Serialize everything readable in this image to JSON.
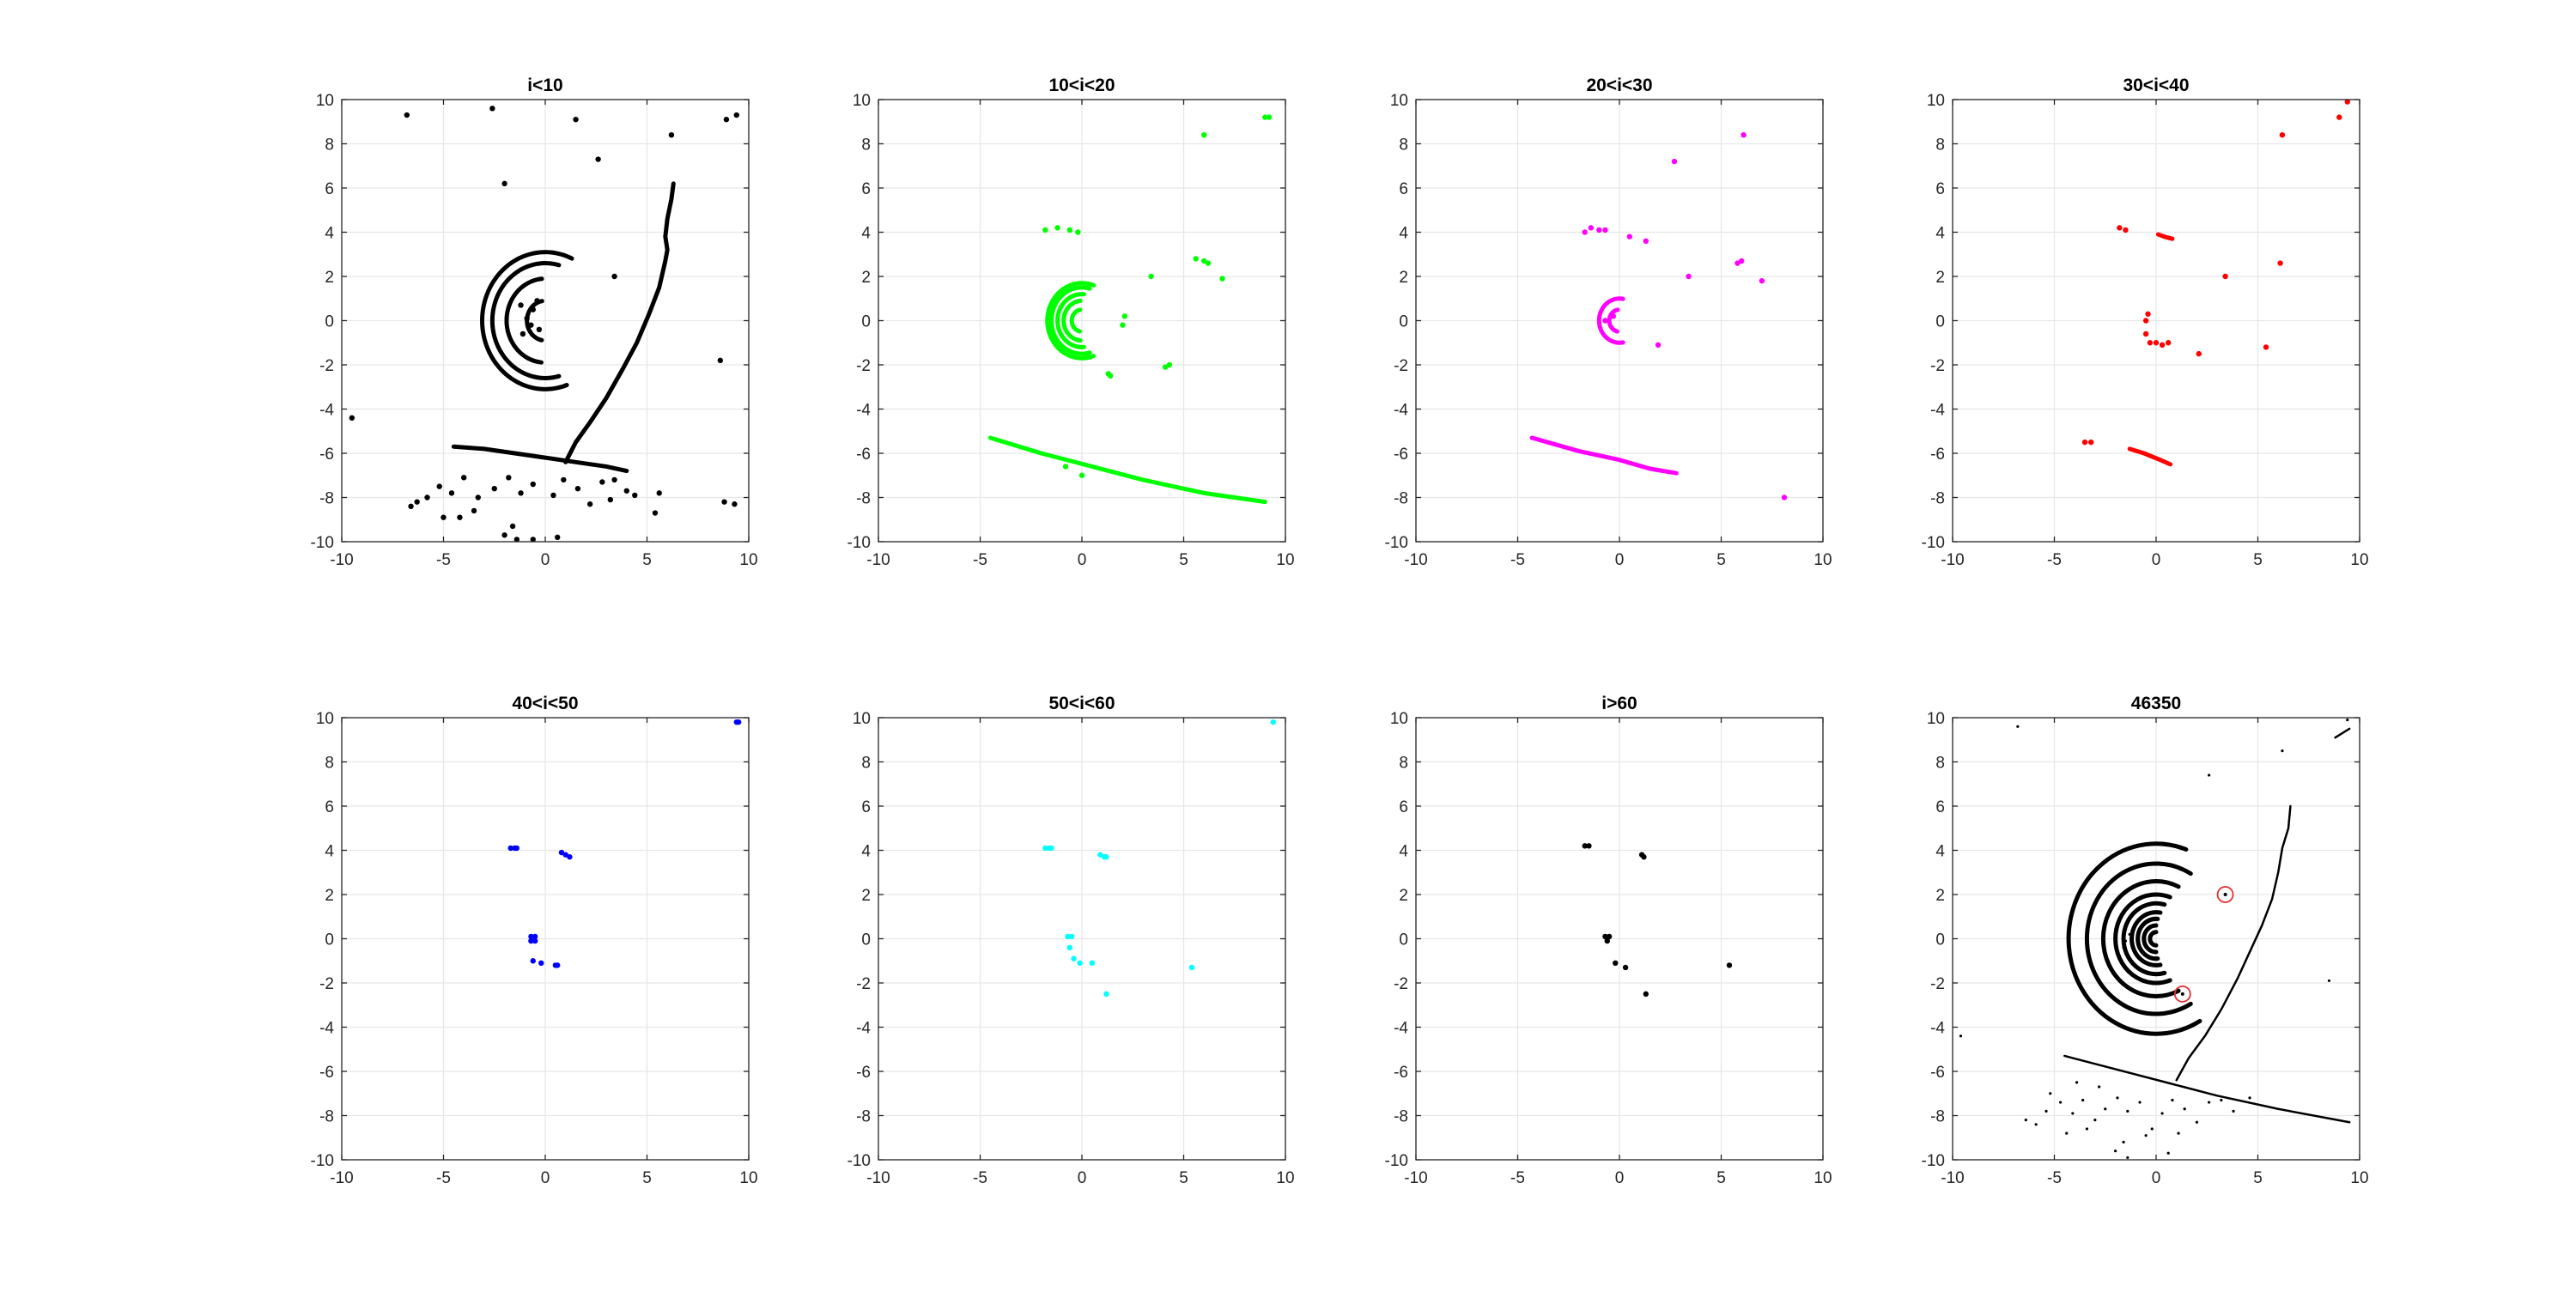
{
  "figure": {
    "background": "#ffffff",
    "axis_color": "#262626",
    "grid_color": "#e6e6e6",
    "circle_marker_color": "#e03030"
  },
  "chart_data": [
    {
      "type": "scatter",
      "title": "i<10",
      "color": "#000000",
      "xlim": [
        -10,
        10
      ],
      "ylim": [
        -10,
        10
      ],
      "xticks": [
        -10,
        -5,
        0,
        5,
        10
      ],
      "yticks": [
        -10,
        -8,
        -6,
        -4,
        -2,
        0,
        2,
        4,
        6,
        8,
        10
      ],
      "grid": true,
      "arcs": [
        {
          "r": 0.9,
          "from": 100,
          "to": 260
        },
        {
          "r": 1.9,
          "from": 95,
          "to": 265
        },
        {
          "r": 2.6,
          "from": 75,
          "to": 285
        },
        {
          "r": 3.1,
          "from": 65,
          "to": 290
        }
      ],
      "polylines": [
        [
          [
            1.0,
            -6.4
          ],
          [
            1.5,
            -5.5
          ],
          [
            2.2,
            -4.6
          ],
          [
            3.0,
            -3.5
          ],
          [
            3.8,
            -2.2
          ],
          [
            4.5,
            -1.0
          ],
          [
            5.1,
            0.3
          ],
          [
            5.6,
            1.5
          ],
          [
            5.9,
            2.7
          ],
          [
            6.0,
            3.2
          ],
          [
            5.9,
            3.8
          ],
          [
            6.0,
            4.6
          ],
          [
            6.2,
            5.5
          ],
          [
            6.3,
            6.2
          ]
        ],
        [
          [
            -4.5,
            -5.7
          ],
          [
            -3.0,
            -5.8
          ],
          [
            -1.5,
            -6.0
          ],
          [
            0.0,
            -6.2
          ],
          [
            1.5,
            -6.4
          ],
          [
            3.0,
            -6.6
          ],
          [
            4.0,
            -6.8
          ]
        ]
      ],
      "points": [
        [
          -6.8,
          9.3
        ],
        [
          -2.6,
          9.6
        ],
        [
          -2.0,
          6.2
        ],
        [
          2.6,
          7.3
        ],
        [
          6.2,
          8.4
        ],
        [
          8.9,
          9.1
        ],
        [
          9.4,
          9.3
        ],
        [
          1.5,
          9.1
        ],
        [
          -9.5,
          -4.4
        ],
        [
          8.6,
          -1.8
        ],
        [
          3.4,
          2.0
        ],
        [
          -0.6,
          0.5
        ],
        [
          -0.9,
          0.1
        ],
        [
          -0.3,
          -0.4
        ],
        [
          -1.1,
          -0.6
        ],
        [
          -0.4,
          0.9
        ],
        [
          -1.2,
          0.7
        ],
        [
          -0.7,
          -0.2
        ],
        [
          -6.3,
          -8.2
        ],
        [
          -6.6,
          -8.4
        ],
        [
          -5.8,
          -8.0
        ],
        [
          -5.2,
          -7.5
        ],
        [
          -4.6,
          -7.8
        ],
        [
          -4.0,
          -7.1
        ],
        [
          -3.3,
          -8.0
        ],
        [
          -2.5,
          -7.6
        ],
        [
          -1.8,
          -7.1
        ],
        [
          -1.2,
          -7.8
        ],
        [
          -0.6,
          -7.4
        ],
        [
          0.4,
          -7.9
        ],
        [
          0.9,
          -7.2
        ],
        [
          1.6,
          -7.6
        ],
        [
          2.2,
          -8.3
        ],
        [
          2.8,
          -7.3
        ],
        [
          3.4,
          -7.2
        ],
        [
          4.0,
          -7.7
        ],
        [
          4.4,
          -7.9
        ],
        [
          5.6,
          -7.8
        ],
        [
          -2.0,
          -9.7
        ],
        [
          -1.4,
          -9.9
        ],
        [
          -0.6,
          -9.9
        ],
        [
          0.6,
          -9.8
        ],
        [
          8.8,
          -8.2
        ],
        [
          9.3,
          -8.3
        ],
        [
          -3.5,
          -8.6
        ],
        [
          -1.6,
          -9.3
        ],
        [
          5.4,
          -8.7
        ],
        [
          -4.2,
          -8.9
        ],
        [
          3.2,
          -8.1
        ],
        [
          -5.0,
          -8.9
        ]
      ]
    },
    {
      "type": "scatter",
      "title": "10<i<20",
      "color": "#00ff00",
      "xlim": [
        -10,
        10
      ],
      "ylim": [
        -10,
        10
      ],
      "xticks": [
        -10,
        -5,
        0,
        5,
        10
      ],
      "yticks": [
        -10,
        -8,
        -6,
        -4,
        -2,
        0,
        2,
        4,
        6,
        8,
        10
      ],
      "grid": true,
      "arcs": [
        {
          "r": 0.5,
          "from": 100,
          "to": 260
        },
        {
          "r": 0.9,
          "from": 95,
          "to": 265
        },
        {
          "r": 1.2,
          "from": 85,
          "to": 275
        },
        {
          "r": 1.5,
          "from": 75,
          "to": 285
        },
        {
          "r": 1.7,
          "from": 70,
          "to": 290
        }
      ],
      "polylines": [
        [
          [
            -4.5,
            -5.3
          ],
          [
            -2.0,
            -6.0
          ],
          [
            0.5,
            -6.6
          ],
          [
            3.0,
            -7.2
          ],
          [
            6.0,
            -7.8
          ],
          [
            9.0,
            -8.2
          ]
        ]
      ],
      "points": [
        [
          6.0,
          8.4
        ],
        [
          9.0,
          9.2
        ],
        [
          9.2,
          9.2
        ],
        [
          -1.8,
          4.1
        ],
        [
          -1.2,
          4.2
        ],
        [
          -0.6,
          4.1
        ],
        [
          -0.2,
          4.0
        ],
        [
          5.6,
          2.8
        ],
        [
          6.2,
          2.6
        ],
        [
          6.0,
          2.7
        ],
        [
          6.9,
          1.9
        ],
        [
          3.4,
          2.0
        ],
        [
          4.3,
          -2.0
        ],
        [
          4.1,
          -2.1
        ],
        [
          2.1,
          0.2
        ],
        [
          2.0,
          -0.2
        ],
        [
          1.3,
          -2.4
        ],
        [
          1.4,
          -2.5
        ],
        [
          -0.8,
          -6.6
        ],
        [
          0.0,
          -7.0
        ]
      ]
    },
    {
      "type": "scatter",
      "title": "20<i<30",
      "color": "#ff00ff",
      "xlim": [
        -10,
        10
      ],
      "ylim": [
        -10,
        10
      ],
      "xticks": [
        -10,
        -5,
        0,
        5,
        10
      ],
      "yticks": [
        -10,
        -8,
        -6,
        -4,
        -2,
        0,
        2,
        4,
        6,
        8,
        10
      ],
      "grid": true,
      "arcs": [
        {
          "r": 0.5,
          "from": 100,
          "to": 260
        },
        {
          "r": 1.0,
          "from": 80,
          "to": 280
        }
      ],
      "polylines": [
        [
          [
            -4.3,
            -5.3
          ],
          [
            -2.0,
            -5.9
          ],
          [
            0.0,
            -6.3
          ],
          [
            1.5,
            -6.7
          ],
          [
            2.8,
            -6.9
          ]
        ]
      ],
      "points": [
        [
          6.1,
          8.4
        ],
        [
          2.7,
          7.2
        ],
        [
          -1.7,
          4.0
        ],
        [
          -1.4,
          4.2
        ],
        [
          -1.0,
          4.1
        ],
        [
          -0.7,
          4.1
        ],
        [
          0.5,
          3.8
        ],
        [
          1.3,
          3.6
        ],
        [
          3.4,
          2.0
        ],
        [
          6.0,
          2.7
        ],
        [
          5.8,
          2.6
        ],
        [
          7.0,
          1.8
        ],
        [
          1.9,
          -1.1
        ],
        [
          8.1,
          -8.0
        ],
        [
          -0.7,
          0.0
        ],
        [
          -0.3,
          0.2
        ]
      ]
    },
    {
      "type": "scatter",
      "title": "30<i<40",
      "color": "#ff0000",
      "xlim": [
        -10,
        10
      ],
      "ylim": [
        -10,
        10
      ],
      "xticks": [
        -10,
        -5,
        0,
        5,
        10
      ],
      "yticks": [
        -10,
        -8,
        -6,
        -4,
        -2,
        0,
        2,
        4,
        6,
        8,
        10
      ],
      "grid": true,
      "arcs": [],
      "polylines": [
        [
          [
            -1.3,
            -5.8
          ],
          [
            -0.6,
            -6.0
          ],
          [
            0.2,
            -6.3
          ],
          [
            0.7,
            -6.5
          ]
        ],
        [
          [
            0.1,
            3.9
          ],
          [
            0.4,
            3.8
          ],
          [
            0.8,
            3.7
          ]
        ]
      ],
      "points": [
        [
          9.4,
          9.9
        ],
        [
          9.0,
          9.2
        ],
        [
          6.2,
          8.4
        ],
        [
          -1.8,
          4.2
        ],
        [
          -1.5,
          4.1
        ],
        [
          3.4,
          2.0
        ],
        [
          6.1,
          2.6
        ],
        [
          -0.4,
          0.3
        ],
        [
          -0.5,
          0.0
        ],
        [
          -0.5,
          -0.6
        ],
        [
          -0.3,
          -1.0
        ],
        [
          0.0,
          -1.0
        ],
        [
          0.3,
          -1.1
        ],
        [
          0.6,
          -1.0
        ],
        [
          2.1,
          -1.5
        ],
        [
          5.4,
          -1.2
        ],
        [
          -3.5,
          -5.5
        ],
        [
          -3.2,
          -5.5
        ]
      ]
    },
    {
      "type": "scatter",
      "title": "40<i<50",
      "color": "#0000ff",
      "xlim": [
        -10,
        10
      ],
      "ylim": [
        -10,
        10
      ],
      "xticks": [
        -10,
        -5,
        0,
        5,
        10
      ],
      "yticks": [
        -10,
        -8,
        -6,
        -4,
        -2,
        0,
        2,
        4,
        6,
        8,
        10
      ],
      "grid": true,
      "arcs": [],
      "polylines": [],
      "points": [
        [
          9.4,
          9.8
        ],
        [
          9.5,
          9.8
        ],
        [
          -1.7,
          4.1
        ],
        [
          -1.5,
          4.1
        ],
        [
          -1.4,
          4.1
        ],
        [
          0.8,
          3.9
        ],
        [
          1.0,
          3.8
        ],
        [
          1.2,
          3.7
        ],
        [
          -0.7,
          0.1
        ],
        [
          -0.5,
          0.1
        ],
        [
          -0.7,
          -0.1
        ],
        [
          -0.5,
          -0.1
        ],
        [
          -0.6,
          -1.0
        ],
        [
          -0.2,
          -1.1
        ],
        [
          0.5,
          -1.2
        ],
        [
          0.6,
          -1.2
        ]
      ]
    },
    {
      "type": "scatter",
      "title": "50<i<60",
      "color": "#00ffff",
      "xlim": [
        -10,
        10
      ],
      "ylim": [
        -10,
        10
      ],
      "xticks": [
        -10,
        -5,
        0,
        5,
        10
      ],
      "yticks": [
        -10,
        -8,
        -6,
        -4,
        -2,
        0,
        2,
        4,
        6,
        8,
        10
      ],
      "grid": true,
      "arcs": [],
      "polylines": [],
      "points": [
        [
          9.4,
          9.8
        ],
        [
          -1.8,
          4.1
        ],
        [
          -1.6,
          4.1
        ],
        [
          -1.5,
          4.1
        ],
        [
          0.9,
          3.8
        ],
        [
          1.1,
          3.7
        ],
        [
          1.2,
          3.7
        ],
        [
          -0.7,
          0.1
        ],
        [
          -0.5,
          0.1
        ],
        [
          -0.6,
          -0.4
        ],
        [
          -0.4,
          -0.9
        ],
        [
          -0.1,
          -1.1
        ],
        [
          0.5,
          -1.1
        ],
        [
          5.4,
          -1.3
        ],
        [
          1.2,
          -2.5
        ]
      ]
    },
    {
      "type": "scatter",
      "title": "i>60",
      "color": "#000000",
      "xlim": [
        -10,
        10
      ],
      "ylim": [
        -10,
        10
      ],
      "xticks": [
        -10,
        -5,
        0,
        5,
        10
      ],
      "yticks": [
        -10,
        -8,
        -6,
        -4,
        -2,
        0,
        2,
        4,
        6,
        8,
        10
      ],
      "grid": true,
      "arcs": [],
      "polylines": [],
      "points": [
        [
          -1.7,
          4.2
        ],
        [
          -1.5,
          4.2
        ],
        [
          1.1,
          3.8
        ],
        [
          1.2,
          3.7
        ],
        [
          -0.7,
          0.1
        ],
        [
          -0.5,
          0.1
        ],
        [
          -0.6,
          -0.1
        ],
        [
          -0.2,
          -1.1
        ],
        [
          0.3,
          -1.3
        ],
        [
          5.4,
          -1.2
        ],
        [
          1.3,
          -2.5
        ]
      ]
    },
    {
      "type": "scatter",
      "title": "46350",
      "color": "#000000",
      "xlim": [
        -10,
        10
      ],
      "ylim": [
        -10,
        10
      ],
      "xticks": [
        -10,
        -5,
        0,
        5,
        10
      ],
      "yticks": [
        -10,
        -8,
        -6,
        -4,
        -2,
        0,
        2,
        4,
        6,
        8,
        10
      ],
      "grid": true,
      "arcs": [
        {
          "r": 0.3,
          "from": 90,
          "to": 270
        },
        {
          "r": 0.6,
          "from": 90,
          "to": 270
        },
        {
          "r": 0.9,
          "from": 85,
          "to": 275
        },
        {
          "r": 1.2,
          "from": 80,
          "to": 280
        },
        {
          "r": 1.6,
          "from": 75,
          "to": 285
        },
        {
          "r": 2.0,
          "from": 70,
          "to": 290
        },
        {
          "r": 2.6,
          "from": 65,
          "to": 295
        },
        {
          "r": 3.4,
          "from": 60,
          "to": 300
        },
        {
          "r": 4.3,
          "from": 70,
          "to": 300
        }
      ],
      "polylines": [
        [
          [
            1.0,
            -6.4
          ],
          [
            1.6,
            -5.4
          ],
          [
            2.4,
            -4.4
          ],
          [
            3.2,
            -3.2
          ],
          [
            4.0,
            -1.8
          ],
          [
            4.6,
            -0.6
          ],
          [
            5.2,
            0.6
          ],
          [
            5.7,
            1.8
          ],
          [
            6.0,
            3.0
          ],
          [
            6.2,
            4.1
          ],
          [
            6.5,
            5.0
          ],
          [
            6.6,
            6.0
          ]
        ],
        [
          [
            -4.5,
            -5.3
          ],
          [
            -2.0,
            -5.9
          ],
          [
            0.5,
            -6.5
          ],
          [
            3.0,
            -7.1
          ],
          [
            6.0,
            -7.7
          ],
          [
            9.5,
            -8.3
          ]
        ],
        [
          [
            8.8,
            9.1
          ],
          [
            9.5,
            9.5
          ]
        ]
      ],
      "points": [
        [
          -6.8,
          9.6
        ],
        [
          2.6,
          7.4
        ],
        [
          6.2,
          8.5
        ],
        [
          9.4,
          9.9
        ],
        [
          -9.6,
          -4.4
        ],
        [
          8.5,
          -1.9
        ],
        [
          -1.5,
          -0.1
        ],
        [
          -1.3,
          0.2
        ],
        [
          -1.6,
          -0.4
        ],
        [
          -6.4,
          -8.2
        ],
        [
          -5.9,
          -8.4
        ],
        [
          -5.4,
          -7.8
        ],
        [
          -4.7,
          -7.4
        ],
        [
          -4.1,
          -7.9
        ],
        [
          -3.6,
          -7.3
        ],
        [
          -3.0,
          -8.2
        ],
        [
          -2.5,
          -7.7
        ],
        [
          -1.9,
          -7.2
        ],
        [
          -1.4,
          -7.8
        ],
        [
          -0.8,
          -7.4
        ],
        [
          0.3,
          -7.9
        ],
        [
          0.8,
          -7.3
        ],
        [
          1.4,
          -7.7
        ],
        [
          2.0,
          -8.3
        ],
        [
          2.6,
          -7.4
        ],
        [
          3.2,
          -7.3
        ],
        [
          3.8,
          -7.8
        ],
        [
          -2.0,
          -9.6
        ],
        [
          -1.4,
          -9.9
        ],
        [
          0.6,
          -9.7
        ],
        [
          -3.4,
          -8.6
        ],
        [
          -1.6,
          -9.2
        ],
        [
          -4.4,
          -8.8
        ],
        [
          -0.2,
          -8.6
        ],
        [
          -5.2,
          -7.0
        ],
        [
          -2.8,
          -6.7
        ],
        [
          -0.5,
          -8.9
        ],
        [
          1.1,
          -8.8
        ],
        [
          -3.9,
          -6.5
        ],
        [
          4.6,
          -7.2
        ]
      ],
      "circles": [
        [
          3.4,
          2.0
        ],
        [
          1.3,
          -2.5
        ]
      ]
    }
  ]
}
